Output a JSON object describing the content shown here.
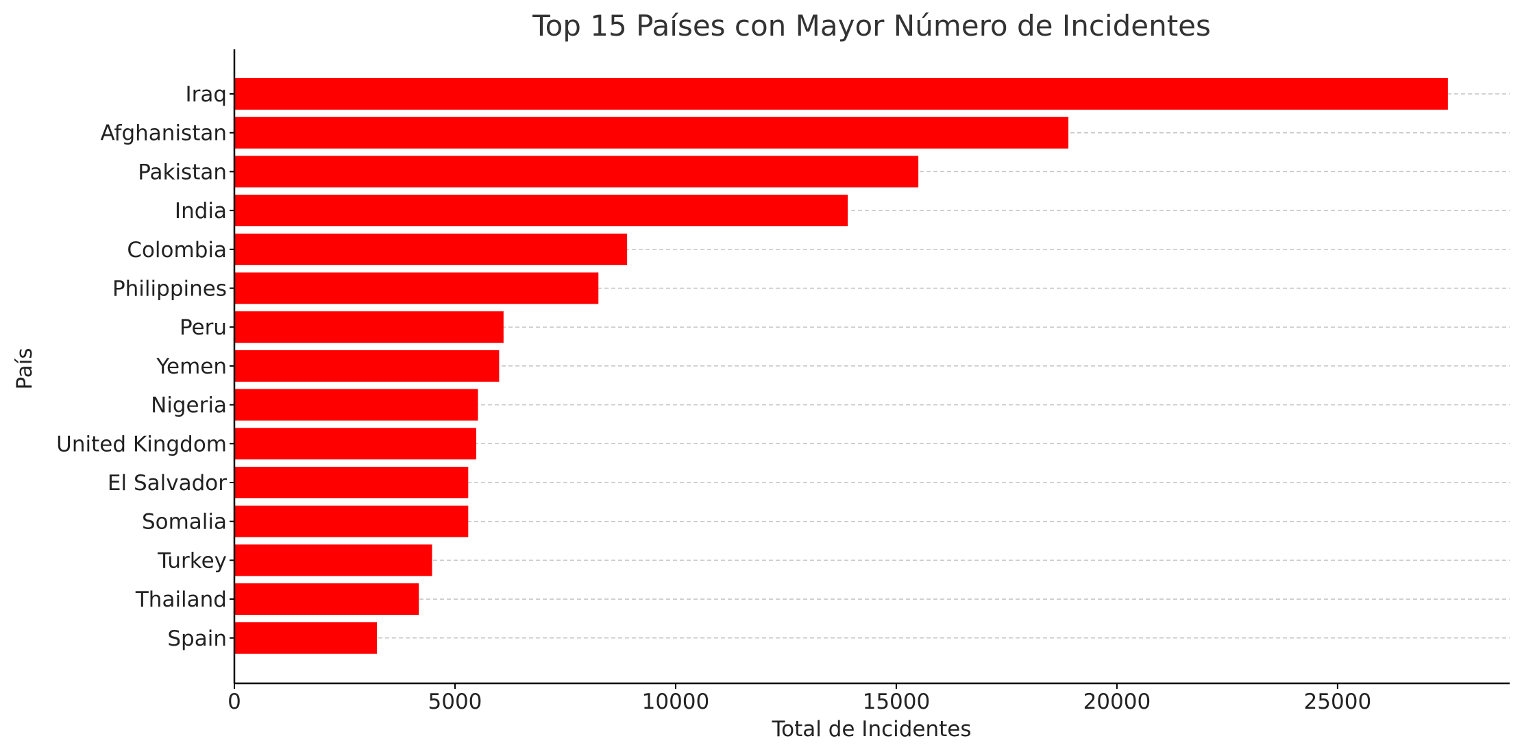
{
  "chart_data": {
    "type": "bar",
    "orientation": "horizontal",
    "title": "Top 15 Países con Mayor Número de Incidentes",
    "xlabel": "Total de Incidentes",
    "ylabel": "País",
    "categories": [
      "Iraq",
      "Afghanistan",
      "Pakistan",
      "India",
      "Colombia",
      "Philippines",
      "Peru",
      "Yemen",
      "Nigeria",
      "United Kingdom",
      "El Salvador",
      "Somalia",
      "Turkey",
      "Thailand",
      "Spain"
    ],
    "values": [
      27500,
      18900,
      15500,
      13900,
      8900,
      8250,
      6100,
      6000,
      5520,
      5480,
      5300,
      5300,
      4480,
      4180,
      3230
    ],
    "xlim": [
      0,
      28900
    ],
    "xticks": [
      0,
      5000,
      10000,
      15000,
      20000,
      25000
    ],
    "bar_color": "#ff0000",
    "grid": "horizontal-dashed"
  }
}
